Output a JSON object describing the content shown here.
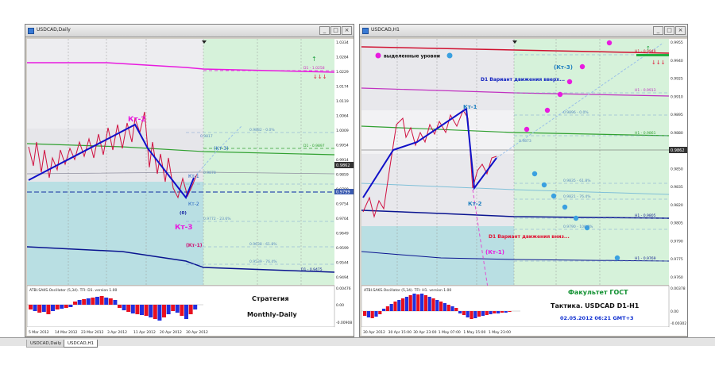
{
  "windows": [
    {
      "title": "USDCAD,Daily",
      "price_labels": [
        "1.0334",
        "1.0284",
        "1.0229",
        "1.0174",
        "1.0119",
        "1.0064",
        "1.0009",
        "0.9954",
        "0.9914",
        "0.9859",
        "0.9799",
        "0.9754",
        "0.9704",
        "0.9649",
        "0.9599",
        "0.9544",
        "0.9494"
      ],
      "current_price": "0.9862",
      "current_price2": "0.9799",
      "osc_labels": [
        "0.00476",
        "0.00",
        "-0.00908"
      ],
      "date_labels": [
        "5 Mar 2012",
        "14 Mar 2012",
        "23 Mar 2012",
        "3 Apr 2012",
        "11 Apr 2012",
        "20 Apr 2012",
        "30 Apr 2012"
      ],
      "osc_title": "ATBI.SAKS.Oscillator (5,34). TFI: D1. version 1.00",
      "lines": {
        "d1_top": "D1 - 1.0258",
        "d1_mid": "D1 - 0.9897",
        "d1_low": "D1 - 0.9475"
      },
      "fibs": [
        "0.9882 - 0.0%",
        "0.9817",
        "0.9878",
        "0.9772 - 23.6%",
        "0.9638 - 61.8%",
        "0.9539 - 76.4%"
      ],
      "labels": {
        "kt2": "Кт-2",
        "kt3": "Кт-3",
        "kt1": "Кт-1",
        "kt3p": "(Кт-3)",
        "kt1p": "(Кт-1)",
        "zero": "(0)",
        "kt2s": "Кт-2"
      },
      "caption": {
        "line1": "Стратегия",
        "line2": "Monthly-Daily"
      }
    },
    {
      "title": "USDCAD,H1",
      "price_labels": [
        "0.9955",
        "0.9940",
        "0.9925",
        "0.9910",
        "0.9895",
        "0.9880",
        "0.9865",
        "0.9850",
        "0.9835",
        "0.9820",
        "0.9805",
        "0.9790",
        "0.9775",
        "0.9760"
      ],
      "current_price": "0.9862",
      "osc_labels": [
        "0.00378",
        "0.00",
        "-0.00302"
      ],
      "date_labels": [
        "30 Apr 2012",
        "30 Apr 15:00",
        "30 Apr 23:00",
        "1 May 07:00",
        "1 May 15:00",
        "1 May 23:00"
      ],
      "osc_title": "ATBI.SAKS.Oscillator (5,34). TFI: H1. version 1.00",
      "lines": {
        "h1_top": "H1 - 0.9949",
        "h1_b": "H1 - 0.9913",
        "h1_c": "H1 - 0.9861",
        "h1_d": "H1 - 0.9805",
        "h1_e": "H1 - 0.9769"
      },
      "fibs": [
        "0.9896 - 0.0%",
        "0.9873",
        "0.9835 - 61.8%",
        "0.9821 - 76.4%",
        "0.9790 - 100.0%"
      ],
      "labels": {
        "legend": "выделенные уровни",
        "kt3p": "(Кт-3)",
        "variant_up": "D1 Вариант движения вверх...",
        "kt1": "Кт-1",
        "kt2": "Кт-2",
        "variant_down": "D1 Вариант движения вниз...",
        "kt1p": "(Кт-1)"
      },
      "caption": {
        "line1": "Факультет ГОСТ",
        "line2": "Тактика. USDCAD D1-H1",
        "line3": "02.05.2012 06:21 GMT+3"
      }
    }
  ],
  "tabs": [
    "USDCAD,Daily",
    "USDCAD,H1"
  ],
  "colors": {
    "bg_left": "#e8e8ec",
    "bg_right": "#d4f0d8",
    "cyan_zone": "#bfe3e6",
    "magenta": "#e21ad6",
    "blue": "#1020d0",
    "red": "#e01030",
    "green_txt": "#00a020"
  }
}
